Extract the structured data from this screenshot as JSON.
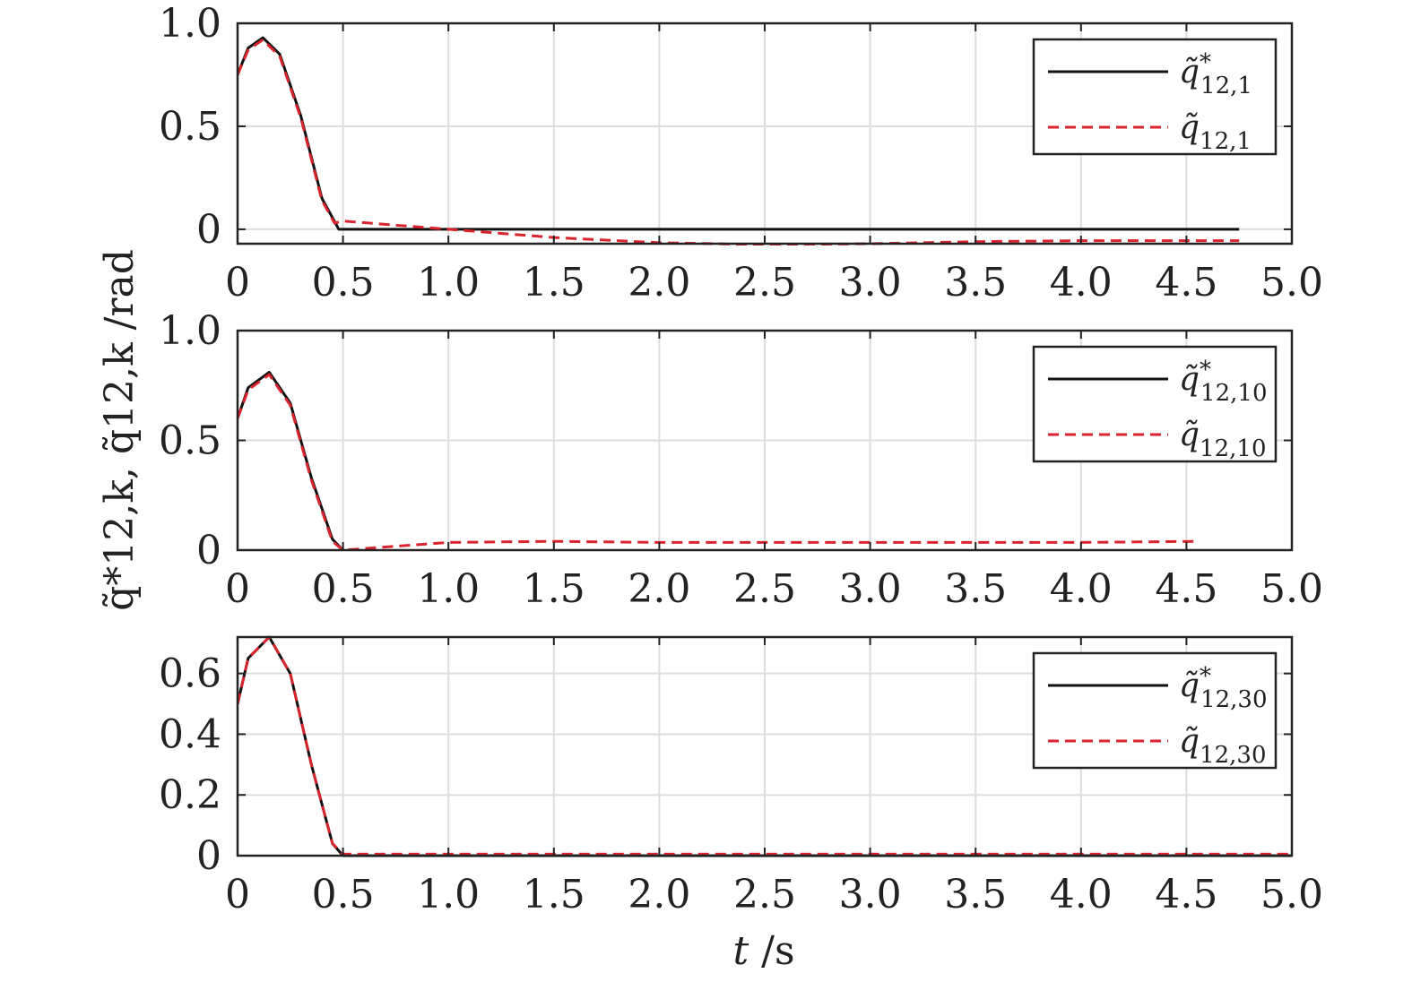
{
  "figure": {
    "ylabel": "q̃*12,k, q̃12,k /rad",
    "xlabel_var": "t",
    "xlabel_unit": " /s"
  },
  "colors": {
    "reference": "#111111",
    "actual": "#d9232d",
    "grid": "#dddddd"
  },
  "chart_data": [
    {
      "type": "line",
      "xlim": [
        0,
        5
      ],
      "ylim": [
        -0.07,
        1.0
      ],
      "xticks": [
        "0",
        "0.5",
        "1.0",
        "1.5",
        "2.0",
        "2.5",
        "3.0",
        "3.5",
        "4.0",
        "4.5",
        "5.0"
      ],
      "yticks": [
        {
          "v": 0,
          "label": "0"
        },
        {
          "v": 0.5,
          "label": "0.5"
        },
        {
          "v": 1.0,
          "label": "1.0"
        }
      ],
      "grid": true,
      "legend": "top-right",
      "legend_entries": [
        {
          "base": "q̃",
          "sup": "*",
          "sub": "12,1",
          "style": "solid"
        },
        {
          "base": "q̃",
          "sup": "",
          "sub": "12,1",
          "style": "dashed"
        }
      ],
      "series": [
        {
          "style": "solid",
          "x": [
            0,
            0.05,
            0.12,
            0.2,
            0.3,
            0.4,
            0.48,
            1.0,
            2.0,
            3.0,
            4.0,
            4.75
          ],
          "y": [
            0.75,
            0.88,
            0.93,
            0.85,
            0.55,
            0.15,
            0.0,
            0.0,
            0.0,
            0.0,
            0.0,
            0.0
          ]
        },
        {
          "style": "dashed",
          "x": [
            0,
            0.05,
            0.12,
            0.2,
            0.3,
            0.4,
            0.46,
            0.5,
            1.0,
            1.5,
            2.0,
            2.5,
            3.0,
            3.5,
            4.0,
            4.5,
            4.75
          ],
          "y": [
            0.75,
            0.87,
            0.92,
            0.84,
            0.54,
            0.14,
            0.03,
            0.04,
            0.0,
            -0.04,
            -0.065,
            -0.075,
            -0.07,
            -0.06,
            -0.055,
            -0.055,
            -0.055
          ]
        }
      ]
    },
    {
      "type": "line",
      "xlim": [
        0,
        5
      ],
      "ylim": [
        0,
        1.0
      ],
      "xticks": [
        "0",
        "0.5",
        "1.0",
        "1.5",
        "2.0",
        "2.5",
        "3.0",
        "3.5",
        "4.0",
        "4.5",
        "5.0"
      ],
      "yticks": [
        {
          "v": 0,
          "label": "0"
        },
        {
          "v": 0.5,
          "label": "0.5"
        },
        {
          "v": 1.0,
          "label": "1.0"
        }
      ],
      "grid": true,
      "legend": "top-right",
      "legend_entries": [
        {
          "base": "q̃",
          "sup": "*",
          "sub": "12,10",
          "style": "solid"
        },
        {
          "base": "q̃",
          "sup": "",
          "sub": "12,10",
          "style": "dashed"
        }
      ],
      "series": [
        {
          "style": "solid",
          "x": [
            0,
            0.05,
            0.15,
            0.25,
            0.35,
            0.45,
            0.5
          ],
          "y": [
            0.6,
            0.74,
            0.81,
            0.67,
            0.33,
            0.05,
            0.0
          ]
        },
        {
          "style": "dashed",
          "x": [
            0,
            0.05,
            0.15,
            0.25,
            0.35,
            0.45,
            0.5,
            1.0,
            1.5,
            2.0,
            3.0,
            4.0,
            4.55
          ],
          "y": [
            0.6,
            0.73,
            0.8,
            0.66,
            0.32,
            0.04,
            0.0,
            0.035,
            0.04,
            0.035,
            0.035,
            0.035,
            0.04
          ]
        }
      ]
    },
    {
      "type": "line",
      "xlim": [
        0,
        5
      ],
      "ylim": [
        0,
        0.72
      ],
      "xticks": [
        "0",
        "0.5",
        "1.0",
        "1.5",
        "2.0",
        "2.5",
        "3.0",
        "3.5",
        "4.0",
        "4.5",
        "5.0"
      ],
      "yticks": [
        {
          "v": 0,
          "label": "0"
        },
        {
          "v": 0.2,
          "label": "0.2"
        },
        {
          "v": 0.4,
          "label": "0.4"
        },
        {
          "v": 0.6,
          "label": "0.6"
        }
      ],
      "grid": true,
      "legend": "top-right",
      "legend_entries": [
        {
          "base": "q̃",
          "sup": "*",
          "sub": "12,30",
          "style": "solid"
        },
        {
          "base": "q̃",
          "sup": "",
          "sub": "12,30",
          "style": "dashed"
        }
      ],
      "series": [
        {
          "style": "solid",
          "x": [
            0,
            0.05,
            0.15,
            0.25,
            0.35,
            0.45,
            0.5,
            5.0
          ],
          "y": [
            0.5,
            0.65,
            0.72,
            0.6,
            0.3,
            0.04,
            0.0,
            0.0
          ]
        },
        {
          "style": "dashed",
          "x": [
            0,
            0.05,
            0.15,
            0.25,
            0.35,
            0.45,
            0.5,
            1.0,
            5.0
          ],
          "y": [
            0.5,
            0.65,
            0.72,
            0.6,
            0.3,
            0.04,
            0.005,
            0.005,
            0.005
          ]
        }
      ]
    }
  ]
}
